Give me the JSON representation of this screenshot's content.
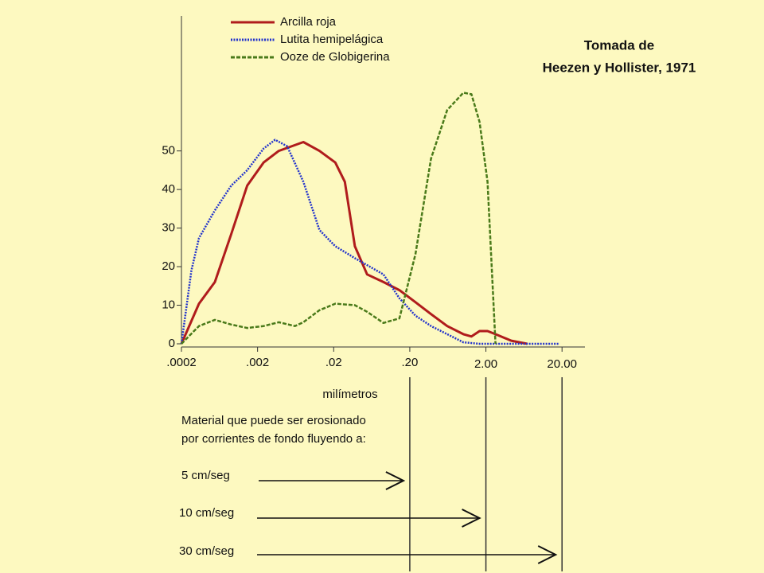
{
  "chart_data": {
    "type": "line",
    "annotation": [
      "Tomada de",
      "Heezen y Hollister, 1971"
    ],
    "xlabel": "milímetros",
    "xscale": "log",
    "xlim": [
      0.0002,
      40
    ],
    "xticks": [
      {
        "value": 0.0002,
        "label": ".0002"
      },
      {
        "value": 0.002,
        "label": ".002"
      },
      {
        "value": 0.02,
        "label": ".02"
      },
      {
        "value": 0.2,
        "label": ".20"
      },
      {
        "value": 2,
        "label": "2.00"
      },
      {
        "value": 20,
        "label": "20.00"
      }
    ],
    "ylim": [
      0,
      85
    ],
    "yticks": [
      0,
      10,
      20,
      30,
      40,
      50
    ],
    "series": [
      {
        "name": "Arcilla roja",
        "color": "#b01c1c",
        "dash": "solid",
        "x": [
          0.0002,
          0.00034,
          0.00055,
          0.0009,
          0.00146,
          0.0024,
          0.0038,
          0.008,
          0.013,
          0.021,
          0.028,
          0.038,
          0.055,
          0.09,
          0.146,
          0.237,
          0.38,
          0.62,
          1.01,
          1.29,
          1.65,
          2.1,
          2.67,
          4.3,
          7.0
        ],
        "values": [
          0,
          10.4,
          16,
          28.4,
          41,
          47,
          50,
          52.3,
          50,
          47,
          42,
          25.3,
          18,
          16,
          13.9,
          10.8,
          7.7,
          4.6,
          2.5,
          1.9,
          3.3,
          3.3,
          2.5,
          0.8,
          0
        ]
      },
      {
        "name": "Lutita hemipelágica",
        "color": "#2233cc",
        "dash": "dotted",
        "x": [
          0.0002,
          0.00027,
          0.00034,
          0.00055,
          0.0009,
          0.00146,
          0.0024,
          0.0034,
          0.0049,
          0.008,
          0.013,
          0.021,
          0.038,
          0.09,
          0.146,
          0.237,
          0.38,
          0.62,
          1.01,
          1.65,
          7.0,
          18.6
        ],
        "values": [
          0,
          19,
          27.4,
          34.6,
          41,
          45,
          50.6,
          52.9,
          51.2,
          42,
          29.5,
          25.3,
          22.2,
          18,
          11.8,
          7.3,
          4.6,
          2.5,
          0.4,
          0,
          0,
          0
        ]
      },
      {
        "name": "Ooze de Globigerina",
        "color": "#4a7a1a",
        "dash": "dashed",
        "x": [
          0.0002,
          0.00034,
          0.00055,
          0.0009,
          0.00146,
          0.0024,
          0.0038,
          0.0062,
          0.008,
          0.013,
          0.021,
          0.038,
          0.055,
          0.09,
          0.146,
          0.237,
          0.38,
          0.62,
          1.01,
          1.29,
          1.65,
          2.1,
          2.67
        ],
        "values": [
          0,
          4.6,
          6.2,
          5,
          4.1,
          4.6,
          5.6,
          4.6,
          5.6,
          8.7,
          10.4,
          10,
          8.3,
          5.4,
          6.6,
          23.2,
          48,
          60.6,
          65.1,
          64.7,
          57.5,
          42,
          0
        ]
      }
    ],
    "note": [
      "Material que puede ser erosionado",
      "por corrientes de fondo fluyendo a:"
    ],
    "velocities": [
      {
        "label": "5 cm/seg",
        "x": 0.2
      },
      {
        "label": "10 cm/seg",
        "x": 2
      },
      {
        "label": "30 cm/seg",
        "x": 20
      }
    ]
  }
}
